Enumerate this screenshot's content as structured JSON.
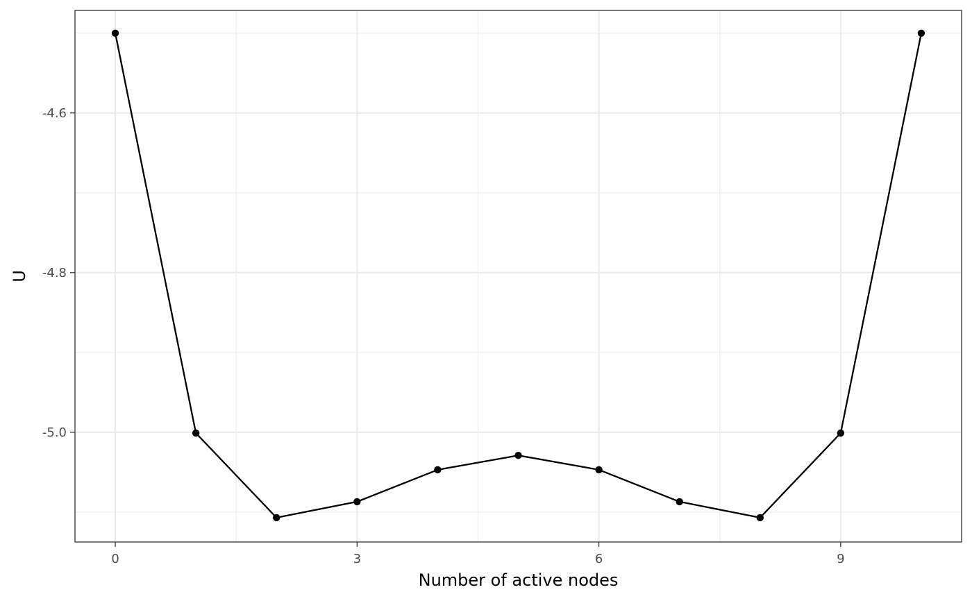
{
  "chart_data": {
    "type": "line",
    "title": "",
    "xlabel": "Number of active nodes",
    "ylabel": "U",
    "x": [
      0,
      1,
      2,
      3,
      4,
      5,
      6,
      7,
      8,
      9,
      10
    ],
    "series": [
      {
        "values": [
          -4.5,
          -5.001,
          -5.107,
          -5.087,
          -5.047,
          -5.029,
          -5.047,
          -5.087,
          -5.107,
          -5.001,
          -4.5
        ]
      }
    ],
    "xlim": [
      -0.5,
      10.5
    ],
    "ylim": [
      -5.1375,
      -4.4715
    ],
    "x_ticks": [
      0,
      3,
      6,
      9
    ],
    "x_tick_labels": [
      "0",
      "3",
      "6",
      "9"
    ],
    "x_minor_ticks": [
      1.5,
      4.5,
      7.5,
      10.5
    ],
    "y_ticks": [
      -5.0,
      -4.8,
      -4.6
    ],
    "y_tick_labels": [
      "-5.0",
      "-4.8",
      "-4.6"
    ],
    "y_minor_ticks": [
      -5.1,
      -4.9,
      -4.7,
      -4.5
    ],
    "grid": true,
    "legend": "none",
    "colors": {
      "line": "#000000",
      "point": "#000000",
      "grid": "#ebebeb",
      "panel_border": "#333333",
      "tick_text": "#4d4d4d"
    }
  }
}
